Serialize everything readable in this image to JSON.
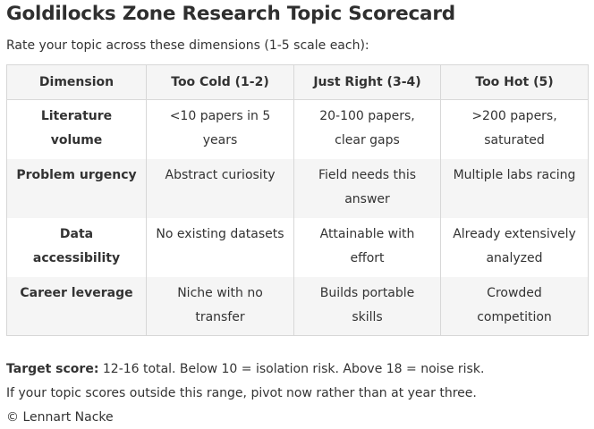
{
  "title": "Goldilocks Zone Research Topic Scorecard",
  "subtitle": "Rate your topic across these dimensions (1-5 scale each):",
  "table": {
    "headers": [
      "Dimension",
      "Too Cold (1-2)",
      "Just Right (3-4)",
      "Too Hot (5)"
    ],
    "rows": [
      {
        "dimension": "Literature volume",
        "too_cold": "<10 papers in 5 years",
        "just_right": "20-100 papers, clear gaps",
        "too_hot": ">200 papers, saturated"
      },
      {
        "dimension": "Problem urgency",
        "too_cold": "Abstract curiosity",
        "just_right": "Field needs this answer",
        "too_hot": "Multiple labs racing"
      },
      {
        "dimension": "Data accessibility",
        "too_cold": "No existing datasets",
        "just_right": "Attainable with effort",
        "too_hot": "Already extensively analyzed"
      },
      {
        "dimension": "Career leverage",
        "too_cold": "Niche with no transfer",
        "just_right": "Builds portable skills",
        "too_hot": "Crowded competition"
      }
    ]
  },
  "footer": {
    "target_label": "Target score:",
    "target_text": " 12-16 total. Below 10 = isolation risk. Above 18 = noise risk.",
    "advice": "If your topic scores outside this range, pivot now rather than at year three.",
    "copyright": "© Lennart Nacke"
  }
}
